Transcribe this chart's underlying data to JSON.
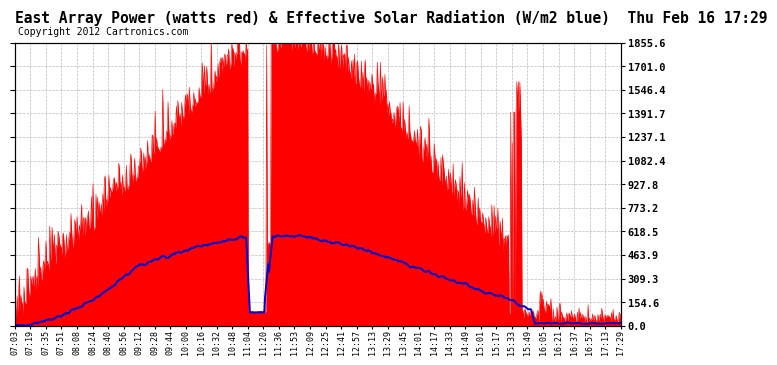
{
  "title": "East Array Power (watts red) & Effective Solar Radiation (W/m2 blue)  Thu Feb 16 17:29",
  "copyright": "Copyright 2012 Cartronics.com",
  "yticks": [
    0.0,
    154.6,
    309.3,
    463.9,
    618.5,
    773.2,
    927.8,
    1082.4,
    1237.1,
    1391.7,
    1546.4,
    1701.0,
    1855.6
  ],
  "ymax": 1855.6,
  "ymin": 0.0,
  "bg_color": "#ffffff",
  "plot_bg_color": "#ffffff",
  "grid_color": "#aaaaaa",
  "red_color": "#ff0000",
  "blue_color": "#0000cc",
  "title_fontsize": 10.5,
  "copyright_fontsize": 7,
  "tick_fontsize": 7.5,
  "xtick_fontsize": 6.0,
  "x_labels": [
    "07:03",
    "07:19",
    "07:35",
    "07:51",
    "08:08",
    "08:24",
    "08:40",
    "08:56",
    "09:12",
    "09:28",
    "09:44",
    "10:00",
    "10:16",
    "10:32",
    "10:48",
    "11:04",
    "11:20",
    "11:36",
    "11:53",
    "12:09",
    "12:25",
    "12:41",
    "12:57",
    "13:13",
    "13:29",
    "13:45",
    "14:01",
    "14:17",
    "14:33",
    "14:49",
    "15:01",
    "15:17",
    "15:33",
    "15:49",
    "16:05",
    "16:21",
    "16:37",
    "16:57",
    "17:13",
    "17:29"
  ]
}
